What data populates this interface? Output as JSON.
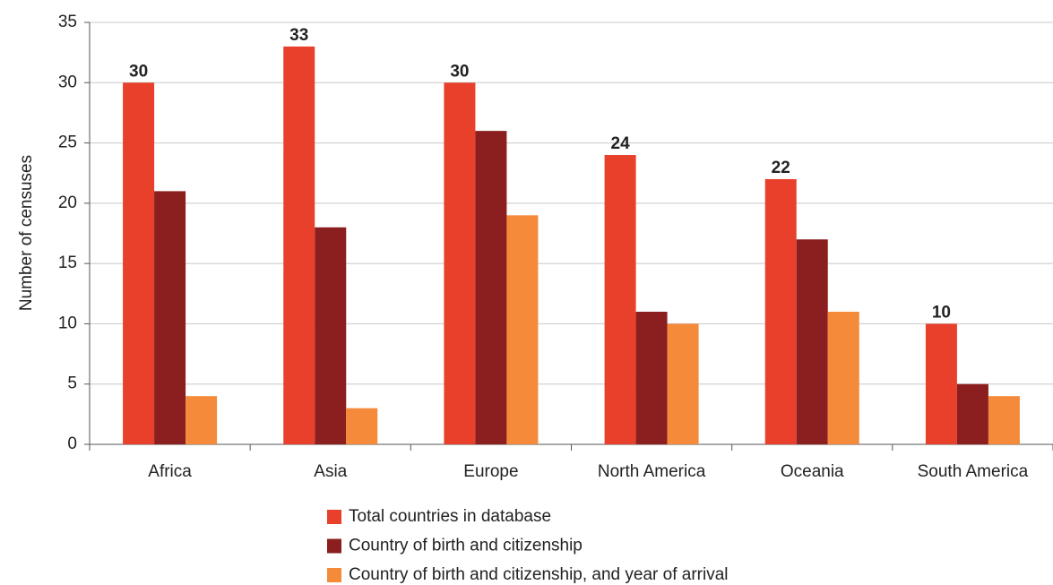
{
  "chart_data": {
    "type": "bar",
    "y_label": "Number of censuses",
    "categories": [
      "Africa",
      "Asia",
      "Europe",
      "North America",
      "Oceania",
      "South America"
    ],
    "series": [
      {
        "name": "Total countries in database",
        "color": "#e8402a",
        "values": [
          30,
          33,
          30,
          24,
          22,
          10
        ]
      },
      {
        "name": "Country of birth and citizenship",
        "color": "#8b1e1e",
        "values": [
          21,
          18,
          26,
          11,
          17,
          5
        ]
      },
      {
        "name": "Country of birth and citizenship, and year of arrival",
        "color": "#f58a3a",
        "values": [
          4,
          3,
          19,
          10,
          11,
          4
        ]
      }
    ],
    "ylim": [
      0,
      35
    ],
    "yticks": [
      0,
      5,
      10,
      15,
      20,
      25,
      30,
      35
    ],
    "grid": true
  }
}
